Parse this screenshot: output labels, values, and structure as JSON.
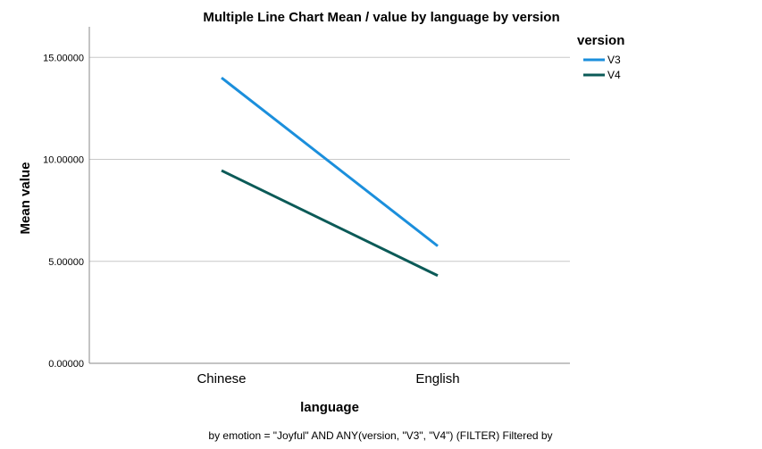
{
  "chart_data": {
    "type": "line",
    "title": "Multiple Line Chart Mean /  value by language by version",
    "xlabel": "language",
    "ylabel": "Mean value",
    "categories": [
      "Chinese",
      "English"
    ],
    "ylim": [
      0,
      16.5
    ],
    "yticks": [
      0,
      5,
      10,
      15
    ],
    "ytick_labels": [
      "0.00000",
      "5.00000",
      "10.00000",
      "15.00000"
    ],
    "grid": "horizontal",
    "legend_title": "version",
    "legend_position": "top-right",
    "series": [
      {
        "name": "V3",
        "values": [
          14.0,
          5.75
        ],
        "color": "#1b8fdc"
      },
      {
        "name": "V4",
        "values": [
          9.45,
          4.3
        ],
        "color": "#0b5a57"
      }
    ],
    "footnote": "by emotion = \"Joyful\" AND ANY(version, \"V3\", \"V4\") (FILTER) Filtered by"
  }
}
